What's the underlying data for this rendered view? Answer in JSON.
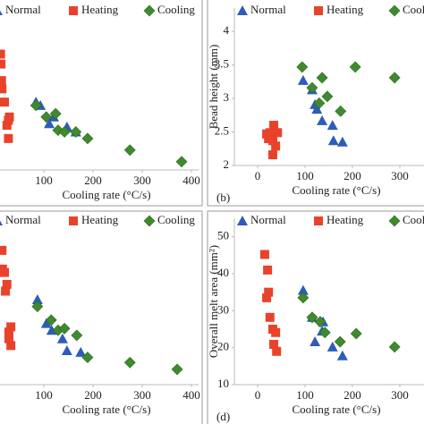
{
  "chart_data": [
    {
      "type": "scatter",
      "xlabel": "Cooling rate (°C/s)",
      "legend": "top",
      "xlim": [
        0,
        400
      ],
      "xticks": [
        100,
        200,
        300,
        400
      ],
      "ylim": [
        0,
        10
      ],
      "series": [
        {
          "name": "Normal",
          "color": "#2e5cb8",
          "marker": "triangle",
          "x": [
            84,
            93,
            111,
            120,
            147,
            165
          ],
          "values": [
            4.1,
            3.9,
            2.8,
            3.2,
            2.6,
            2.3
          ]
        },
        {
          "name": "Heating",
          "color": "#e8432a",
          "marker": "square",
          "x": [
            12,
            13,
            14,
            15,
            20,
            30,
            28,
            25,
            28
          ],
          "values": [
            7.0,
            6.4,
            5.4,
            4.9,
            4.1,
            3.2,
            3.0,
            2.7,
            1.9
          ]
        },
        {
          "name": "Cooling",
          "color": "#3f8a2e",
          "marker": "diamond",
          "x": [
            84,
            105,
            124,
            129,
            142,
            165,
            189,
            275,
            380
          ],
          "values": [
            3.9,
            3.2,
            3.4,
            2.4,
            2.3,
            2.3,
            1.9,
            1.2,
            0.5
          ]
        }
      ]
    },
    {
      "type": "scatter",
      "xlabel": "Cooling rate (°C/s)",
      "ylabel": "Bead height (mm)",
      "panel_label": "(b)",
      "legend": "top",
      "xlim": [
        0,
        400
      ],
      "xticks": [
        0,
        100,
        200,
        300
      ],
      "ylim": [
        2,
        4.35
      ],
      "yticks": [
        2,
        2.5,
        3,
        3.5,
        4
      ],
      "series": [
        {
          "name": "Normal",
          "color": "#2e5cb8",
          "marker": "triangle",
          "x": [
            96,
            115,
            121,
            125,
            136,
            158,
            160,
            179
          ],
          "values": [
            3.27,
            3.13,
            2.91,
            2.84,
            2.67,
            2.6,
            2.37,
            2.35
          ]
        },
        {
          "name": "Heating",
          "color": "#e8432a",
          "marker": "square",
          "x": [
            19,
            23,
            26,
            34,
            32,
            42,
            32,
            38
          ],
          "values": [
            2.47,
            2.4,
            2.49,
            2.6,
            2.37,
            2.49,
            2.16,
            2.29
          ]
        },
        {
          "name": "Cooling",
          "color": "#3f8a2e",
          "marker": "diamond",
          "x": [
            94,
            115,
            136,
            147,
            130,
            175,
            206,
            289
          ],
          "values": [
            3.47,
            3.16,
            3.31,
            3.03,
            2.93,
            2.81,
            3.47,
            3.31
          ]
        }
      ]
    },
    {
      "type": "scatter",
      "xlabel": "Cooling rate (°C/s)",
      "legend": "top",
      "xlim": [
        0,
        400
      ],
      "xticks": [
        100,
        200,
        300,
        400
      ],
      "ylim": [
        0,
        10
      ],
      "series": [
        {
          "name": "Normal",
          "color": "#2e5cb8",
          "marker": "triangle",
          "x": [
            87,
            105,
            116,
            138,
            147,
            175
          ],
          "values": [
            5.0,
            3.6,
            3.2,
            2.7,
            2.0,
            1.9
          ]
        },
        {
          "name": "Heating",
          "color": "#e8432a",
          "marker": "square",
          "x": [
            15,
            16,
            20,
            25,
            22,
            33,
            29,
            29,
            33
          ],
          "values": [
            7.9,
            6.8,
            6.6,
            5.9,
            5.5,
            3.4,
            3.1,
            2.7,
            2.3
          ]
        },
        {
          "name": "Cooling",
          "color": "#3f8a2e",
          "marker": "diamond",
          "x": [
            87,
            115,
            129,
            142,
            167,
            189,
            275,
            371
          ],
          "values": [
            4.6,
            3.8,
            3.2,
            3.3,
            2.9,
            1.6,
            1.3,
            0.9
          ]
        }
      ]
    },
    {
      "type": "scatter",
      "xlabel": "Cooling rate (°C/s)",
      "ylabel": "Overall melt area (mm²)",
      "panel_label": "(d)",
      "legend": "top",
      "xlim": [
        0,
        400
      ],
      "xticks": [
        0,
        100,
        200,
        300
      ],
      "ylim": [
        10,
        55
      ],
      "yticks": [
        10,
        20,
        30,
        40,
        50
      ],
      "series": [
        {
          "name": "Normal",
          "color": "#2e5cb8",
          "marker": "triangle",
          "x": [
            96,
            115,
            121,
            138,
            136,
            158,
            179
          ],
          "values": [
            35.5,
            28.2,
            21.6,
            27.0,
            24.5,
            20.2,
            17.8
          ]
        },
        {
          "name": "Heating",
          "color": "#e8432a",
          "marker": "square",
          "x": [
            15,
            21,
            23,
            19,
            26,
            32,
            38,
            34,
            40
          ],
          "values": [
            45.2,
            41.0,
            35.0,
            33.5,
            28.2,
            25.0,
            24.1,
            20.9,
            19.0
          ]
        },
        {
          "name": "Cooling",
          "color": "#3f8a2e",
          "marker": "diamond",
          "x": [
            96,
            115,
            132,
            142,
            174,
            208,
            289
          ],
          "values": [
            33.5,
            28.2,
            27.0,
            24.1,
            21.6,
            23.8,
            20.2
          ]
        }
      ]
    }
  ]
}
